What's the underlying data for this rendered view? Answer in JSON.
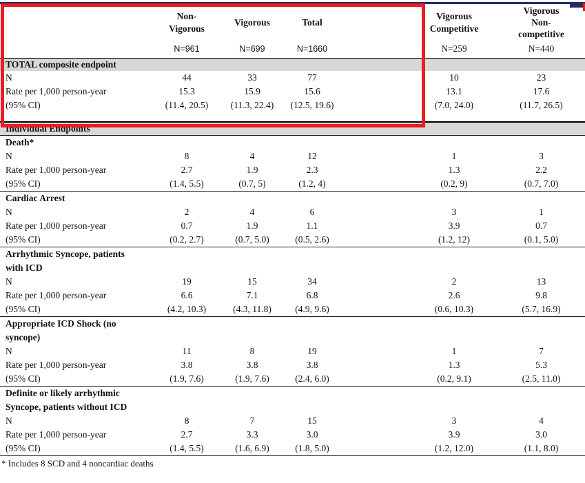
{
  "colors": {
    "highlight_box": "#ec1c24",
    "section_shading": "#d8d8d8",
    "top_strip": "#232b66"
  },
  "table": {
    "row_labels": {
      "n": "N",
      "rate": "Rate per 1,000 person-year",
      "ci": "(95% CI)"
    },
    "columns": [
      {
        "label": "Non-\nVigorous",
        "n": "N=961"
      },
      {
        "label": "Vigorous",
        "n": "N=699"
      },
      {
        "label": "Total",
        "n": "N=1660"
      },
      {
        "label": "Vigorous\nCompetitive",
        "n": "N=259"
      },
      {
        "label": "Vigorous\nNon-\ncompetitive",
        "n": "N=440"
      }
    ],
    "sections": [
      {
        "title": "TOTAL composite endpoint",
        "shaded": true,
        "rows": {
          "n": [
            "44",
            "33",
            "77",
            "10",
            "23"
          ],
          "rate": [
            "15.3",
            "15.9",
            "15.6",
            "13.1",
            "17.6"
          ],
          "ci": [
            "(11.4, 20.5)",
            "(11.3, 22.4)",
            "(12.5, 19.6)",
            "(7.0, 24.0)",
            "(11.7, 26.5)"
          ]
        }
      },
      {
        "title": "Individual Endpoints",
        "shaded": true
      },
      {
        "title": "Death*",
        "shaded": false,
        "rows": {
          "n": [
            "8",
            "4",
            "12",
            "1",
            "3"
          ],
          "rate": [
            "2.7",
            "1.9",
            "2.3",
            "1.3",
            "2.2"
          ],
          "ci": [
            "(1.4, 5.5)",
            "(0.7, 5)",
            "(1.2, 4)",
            "(0.2, 9)",
            "(0.7, 7.0)"
          ]
        }
      },
      {
        "title": "Cardiac Arrest",
        "shaded": false,
        "rows": {
          "n": [
            "2",
            "4",
            "6",
            "3",
            "1"
          ],
          "rate": [
            "0.7",
            "1.9",
            "1.1",
            "3.9",
            "0.7"
          ],
          "ci": [
            "(0.2, 2.7)",
            "(0.7, 5.0)",
            "(0.5, 2.6)",
            "(1.2, 12)",
            "(0.1, 5.0)"
          ]
        }
      },
      {
        "title": "Arrhythmic Syncope, patients\nwith ICD",
        "shaded": false,
        "rows": {
          "n": [
            "19",
            "15",
            "34",
            "2",
            "13"
          ],
          "rate": [
            "6.6",
            "7.1",
            "6.8",
            "2.6",
            "9.8"
          ],
          "ci": [
            "(4.2, 10.3)",
            "(4.3, 11.8)",
            "(4.9, 9.6)",
            "(0.6, 10.3)",
            "(5.7, 16.9)"
          ]
        }
      },
      {
        "title": "Appropriate ICD Shock (no\nsyncope)",
        "shaded": false,
        "rows": {
          "n": [
            "11",
            "8",
            "19",
            "1",
            "7"
          ],
          "rate": [
            "3.8",
            "3.8",
            "3.8",
            "1.3",
            "5.3"
          ],
          "ci": [
            "(1.9, 7.6)",
            "(1.9, 7.6)",
            "(2.4, 6.0)",
            "(0.2, 9.1)",
            "(2.5, 11.0)"
          ]
        }
      },
      {
        "title": "Definite or likely arrhythmic\nSyncope, patients without ICD",
        "shaded": false,
        "rows": {
          "n": [
            "8",
            "7",
            "15",
            "3",
            "4"
          ],
          "rate": [
            "2.7",
            "3.3",
            "3.0",
            "3.9",
            "3.0"
          ],
          "ci": [
            "(1.4, 5.5)",
            "(1.6, 6.9)",
            "(1.8, 5.0)",
            "(1.2, 12.0)",
            "(1.1, 8.0)"
          ]
        }
      }
    ]
  },
  "footnote": "* Includes 8 SCD and 4 noncardiac deaths"
}
